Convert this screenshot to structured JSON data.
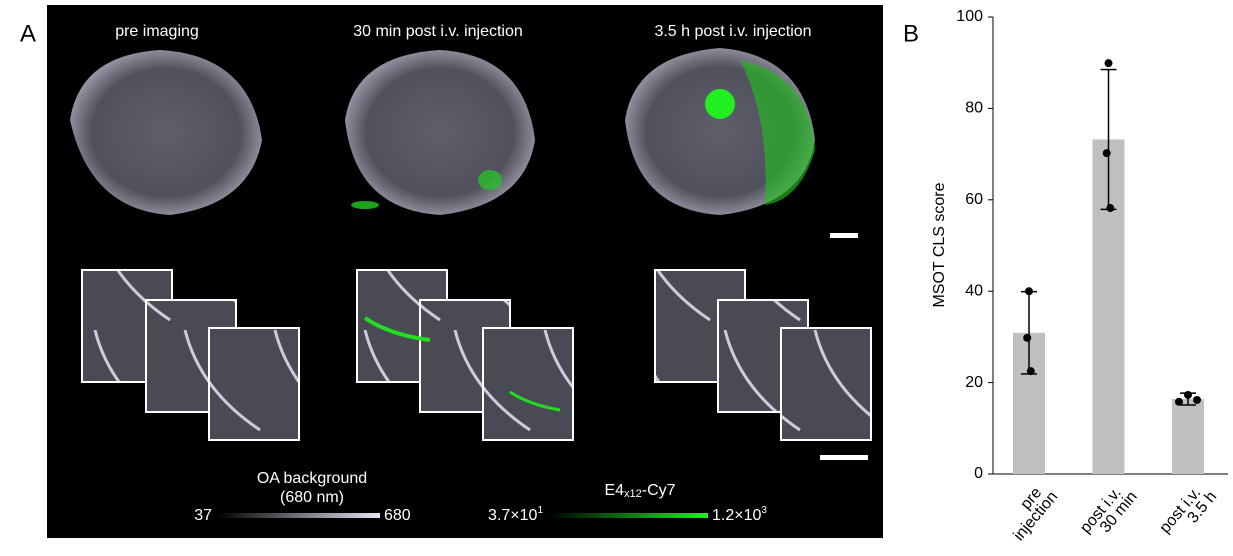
{
  "panel_a": {
    "letter": "A",
    "titles": [
      "pre imaging",
      "30 min post i.v. injection",
      "3.5 h post i.v. injection"
    ],
    "colorbar_gray": {
      "title": [
        "OA background",
        "(680 nm)"
      ],
      "min": "37",
      "max": "680"
    },
    "colorbar_green": {
      "title": [
        "E4",
        "x12",
        "-Cy7"
      ],
      "min": [
        "3.7×10",
        "1"
      ],
      "max": [
        "1.2×10",
        "3"
      ]
    }
  },
  "chart_data": {
    "type": "bar",
    "panel_letter": "B",
    "ylabel": "MSOT CLS score",
    "categories": [
      [
        "pre",
        "injection"
      ],
      [
        "post i.v.",
        "30 min"
      ],
      [
        "post i.v.",
        "3.5 h"
      ]
    ],
    "values": [
      30.9,
      73.2,
      16.4
    ],
    "errors": [
      9,
      15.3,
      1.3
    ],
    "points": [
      [
        40,
        29.8,
        22.5
      ],
      [
        89.9,
        70.2,
        58.2
      ],
      [
        17.3,
        15.8,
        16.2
      ]
    ],
    "color": "#bfbfbf",
    "ylim": [
      0,
      100
    ],
    "yticks": [
      0,
      20,
      40,
      60,
      80,
      100
    ]
  }
}
